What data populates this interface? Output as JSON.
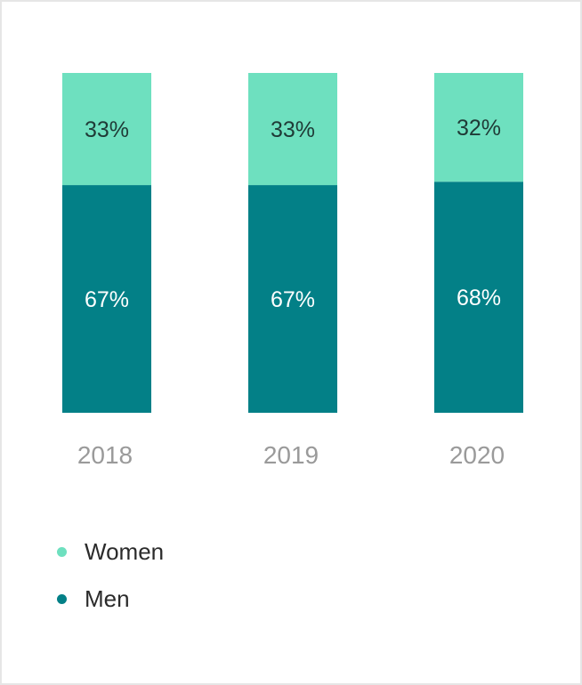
{
  "chart_data": {
    "type": "bar",
    "stacked": true,
    "categories": [
      "2018",
      "2019",
      "2020"
    ],
    "series": [
      {
        "name": "Men",
        "values": [
          67,
          67,
          68
        ],
        "labels": [
          "67%",
          "67%",
          "68%"
        ],
        "color": "#038087"
      },
      {
        "name": "Women",
        "values": [
          33,
          33,
          32
        ],
        "labels": [
          "33%",
          "33%",
          "32%"
        ],
        "color": "#6ee0bf"
      }
    ],
    "ylim": [
      0,
      100
    ],
    "grid": false,
    "legend": "bottom-left"
  },
  "legend": {
    "items": [
      {
        "label": "Women",
        "color": "#6ee0bf"
      },
      {
        "label": "Men",
        "color": "#038087"
      }
    ]
  }
}
